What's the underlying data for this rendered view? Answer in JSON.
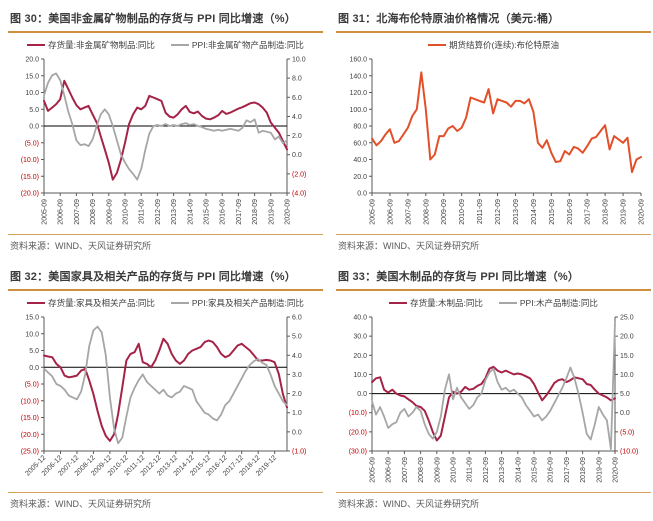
{
  "palette": {
    "crimson": "#A52347",
    "gray": "#A6A6A6",
    "orange": "#E2502A",
    "rule_orange": "#CE8F3F",
    "negative_tick": "#C00000",
    "axis": "#595959",
    "tick_text": "#404040",
    "zero_line": "#000000",
    "title_text": "#3B3B3B",
    "source_text": "#595959"
  },
  "chart_data": [
    {
      "type": "line",
      "title": "图 30：美国非金属矿物制品的存货与 PPI 同比增速（%）",
      "source": "资料来源：WIND、天风证券研究所",
      "legend_position": "top-center",
      "x_rotation": 90,
      "x_label_every": 4,
      "x_tick_labels": [
        "2005-09",
        "2006-09",
        "2007-09",
        "2008-09",
        "2009-09",
        "2010-09",
        "2011-09",
        "2012-09",
        "2013-09",
        "2014-09",
        "2015-09",
        "2016-09",
        "2017-09",
        "2018-09",
        "2019-09",
        "2020-09"
      ],
      "left_axis": {
        "min": -20,
        "max": 20,
        "tick_values": [
          20,
          15,
          10,
          5,
          0,
          -5,
          -10,
          -15,
          -20
        ],
        "tick_labels": [
          "20.0",
          "15.0",
          "10.0",
          "5.0",
          "0.0",
          "(5.0)",
          "(10.0)",
          "(15.0)",
          "(20.0)"
        ]
      },
      "right_axis": {
        "min": -4,
        "max": 10,
        "tick_values": [
          10,
          8,
          6,
          4,
          2,
          0,
          -2,
          -4
        ],
        "tick_labels": [
          "10.0",
          "8.0",
          "6.0",
          "4.0",
          "2.0",
          "0.0",
          "(2.0)",
          "(4.0)"
        ]
      },
      "series": [
        {
          "name": "存货量:非金属矿物制品:同比",
          "axis": "left",
          "color": "crimson",
          "width": 2,
          "values": [
            7.5,
            4.5,
            5.5,
            6.5,
            8.0,
            13.5,
            11.0,
            8.5,
            6.2,
            5.0,
            5.5,
            6.0,
            3.5,
            1.0,
            -3.0,
            -7.0,
            -11.0,
            -16.0,
            -14.0,
            -10.0,
            -5.0,
            0.5,
            3.5,
            5.5,
            5.0,
            6.0,
            9.0,
            8.5,
            8.0,
            7.5,
            4.0,
            2.8,
            2.5,
            3.5,
            5.0,
            6.0,
            4.2,
            3.8,
            4.3,
            3.0,
            2.2,
            2.0,
            2.5,
            3.2,
            4.5,
            3.6,
            4.0,
            4.6,
            5.2,
            5.6,
            6.2,
            6.8,
            7.0,
            6.5,
            5.5,
            4.0,
            1.0,
            -0.5,
            -2.0,
            -4.5,
            -7.0
          ]
        },
        {
          "name": "PPI:非金属矿物产品制造:同比",
          "axis": "right",
          "color": "gray",
          "width": 1.8,
          "values": [
            6.2,
            7.5,
            8.3,
            8.5,
            7.8,
            6.2,
            4.5,
            3.2,
            1.5,
            1.0,
            1.1,
            0.9,
            1.6,
            3.0,
            4.2,
            4.75,
            4.2,
            3.0,
            1.5,
            0.0,
            -0.8,
            -1.5,
            -2.0,
            -2.6,
            -1.5,
            0.5,
            2.2,
            3.0,
            3.1,
            3.0,
            3.2,
            3.0,
            3.1,
            3.0,
            3.2,
            3.3,
            3.1,
            3.2,
            3.0,
            2.9,
            2.7,
            2.6,
            2.5,
            2.6,
            2.5,
            2.6,
            2.7,
            2.6,
            2.5,
            2.8,
            3.6,
            3.4,
            3.7,
            2.3,
            2.5,
            2.4,
            2.3,
            1.6,
            1.9,
            1.2,
            1.5
          ]
        }
      ]
    },
    {
      "type": "line",
      "title": "图 31：北海布伦特原油价格情况（美元:桶）",
      "source": "资料来源：WIND、天风证券研究所",
      "legend_position": "top-center",
      "x_rotation": 90,
      "x_label_every": 4,
      "x_tick_labels": [
        "2005-09",
        "2006-09",
        "2007-09",
        "2008-09",
        "2009-09",
        "2010-09",
        "2011-09",
        "2012-09",
        "2013-09",
        "2014-09",
        "2015-09",
        "2016-09",
        "2017-09",
        "2018-09",
        "2019-09",
        "2020-09"
      ],
      "left_axis": {
        "min": 0,
        "max": 160,
        "tick_values": [
          160,
          140,
          120,
          100,
          80,
          60,
          40,
          20,
          0
        ],
        "tick_labels": [
          "160.0",
          "140.0",
          "120.0",
          "100.0",
          "80.0",
          "60.0",
          "40.0",
          "20.0",
          "0.0"
        ]
      },
      "right_axis": null,
      "series": [
        {
          "name": "期货结算价(连续):布伦特原油",
          "axis": "left",
          "color": "orange",
          "width": 2,
          "values": [
            65,
            57,
            62,
            70,
            76,
            60,
            62,
            70,
            78,
            92,
            100,
            144,
            100,
            40,
            46,
            68,
            68,
            77,
            80,
            74,
            78,
            90,
            114,
            112,
            110,
            108,
            124,
            95,
            112,
            110,
            108,
            103,
            110,
            110,
            107,
            112,
            97,
            60,
            54,
            63,
            48,
            37,
            38,
            50,
            46,
            55,
            53,
            48,
            56,
            65,
            67,
            74,
            81,
            52,
            68,
            64,
            60,
            66,
            25,
            40,
            43
          ]
        }
      ]
    },
    {
      "type": "line",
      "title": "图 32：美国家具及相关产品的存货与 PPI 同比增速（%）",
      "source": "资料来源：WIND、天风证券研究所",
      "legend_position": "top-center",
      "x_rotation": 45,
      "x_label_every": 4,
      "x_tick_labels": [
        "2005-12",
        "2006-12",
        "2007-12",
        "2008-12",
        "2009-12",
        "2010-12",
        "2011-12",
        "2012-12",
        "2013-12",
        "2014-12",
        "2015-12",
        "2016-12",
        "2017-12",
        "2018-12",
        "2019-12"
      ],
      "left_axis": {
        "min": -25,
        "max": 15,
        "tick_values": [
          15,
          10,
          5,
          0,
          -5,
          -10,
          -15,
          -20,
          -25
        ],
        "tick_labels": [
          "15.0",
          "10.0",
          "5.0",
          "0.0",
          "(5.0)",
          "(10.0)",
          "(15.0)",
          "(20.0)",
          "(25.0)"
        ]
      },
      "right_axis": {
        "min": -1,
        "max": 6,
        "tick_values": [
          6,
          5,
          4,
          3,
          2,
          1,
          0,
          -1
        ],
        "tick_labels": [
          "6.0",
          "5.0",
          "4.0",
          "3.0",
          "2.0",
          "1.0",
          "0.0",
          "(1.0)"
        ]
      },
      "series": [
        {
          "name": "存货量:家具及相关产品:同比",
          "axis": "left",
          "color": "crimson",
          "width": 2,
          "values": [
            3.5,
            3.2,
            3.0,
            1.0,
            0.0,
            -2.5,
            -3.0,
            -2.8,
            -2.5,
            -1.0,
            -0.5,
            -4.0,
            -8.0,
            -13.0,
            -17.5,
            -20.5,
            -22.0,
            -20.0,
            -14.0,
            -6.0,
            2.0,
            4.0,
            4.5,
            7.0,
            1.5,
            1.0,
            0.0,
            2.0,
            5.0,
            8.5,
            7.0,
            4.0,
            2.0,
            1.0,
            2.0,
            4.0,
            5.0,
            5.5,
            6.0,
            7.5,
            8.0,
            7.5,
            6.0,
            4.0,
            3.0,
            3.5,
            5.0,
            6.5,
            7.0,
            6.0,
            5.0,
            3.5,
            2.0,
            2.0,
            2.2,
            2.0,
            1.5,
            -2.0,
            -8.0,
            -12.0
          ]
        },
        {
          "name": "PPI:家具及相关产品制造:同比",
          "axis": "right",
          "color": "gray",
          "width": 1.8,
          "values": [
            3.3,
            3.1,
            2.9,
            2.5,
            2.4,
            2.2,
            1.9,
            1.8,
            1.7,
            2.1,
            3.0,
            4.5,
            5.3,
            5.5,
            5.2,
            4.0,
            1.8,
            0.2,
            -0.6,
            -0.3,
            0.8,
            1.8,
            2.3,
            2.7,
            3.0,
            2.6,
            2.4,
            2.2,
            2.0,
            2.2,
            1.9,
            1.8,
            2.0,
            2.1,
            2.4,
            2.3,
            2.2,
            1.6,
            1.3,
            1.0,
            0.9,
            0.7,
            0.6,
            0.9,
            1.4,
            1.6,
            2.0,
            2.4,
            2.8,
            3.2,
            3.5,
            3.7,
            3.8,
            3.6,
            3.5,
            3.0,
            2.4,
            2.0,
            1.6,
            1.4
          ]
        }
      ]
    },
    {
      "type": "line",
      "title": "图 33：美国木制品的存货与 PPI 同比增速（%）",
      "source": "资料来源：WIND、天风证券研究所",
      "legend_position": "top-center",
      "x_rotation": 90,
      "x_label_every": 4,
      "x_tick_labels": [
        "2005-09",
        "2006-09",
        "2007-09",
        "2008-09",
        "2009-09",
        "2010-09",
        "2011-09",
        "2012-09",
        "2013-09",
        "2014-09",
        "2015-09",
        "2016-09",
        "2017-09",
        "2018-09",
        "2019-09",
        "2020-09"
      ],
      "left_axis": {
        "min": -30,
        "max": 40,
        "tick_values": [
          40,
          30,
          20,
          10,
          0,
          -10,
          -20,
          -30
        ],
        "tick_labels": [
          "40.0",
          "30.0",
          "20.0",
          "10.0",
          "0.0",
          "(10.0)",
          "(20.0)",
          "(30.0)"
        ]
      },
      "right_axis": {
        "min": -10,
        "max": 25,
        "tick_values": [
          25,
          20,
          15,
          10,
          5,
          0,
          -5,
          -10
        ],
        "tick_labels": [
          "25.0",
          "20.0",
          "15.0",
          "10.0",
          "5.0",
          "0.0",
          "(5.0)",
          "(10.0)"
        ]
      },
      "series": [
        {
          "name": "存货量:木制品:同比",
          "axis": "left",
          "color": "crimson",
          "width": 2,
          "values": [
            6.0,
            8.0,
            8.5,
            2.0,
            0.5,
            2.0,
            0.0,
            -1.0,
            -1.5,
            -3.0,
            -4.5,
            -6.5,
            -7.0,
            -9.0,
            -14.0,
            -20.0,
            -24.5,
            -22.0,
            -12.0,
            -2.0,
            1.0,
            0.0,
            1.0,
            3.5,
            2.0,
            2.5,
            4.0,
            5.0,
            8.0,
            13.0,
            14.0,
            12.0,
            11.0,
            12.0,
            11.0,
            10.0,
            10.5,
            10.0,
            9.0,
            8.0,
            5.0,
            0.5,
            -3.5,
            -1.0,
            2.0,
            5.5,
            7.0,
            7.5,
            6.0,
            7.0,
            8.5,
            8.0,
            7.5,
            5.0,
            4.5,
            2.0,
            0.0,
            -1.0,
            -2.0,
            -3.5,
            -2.5
          ]
        },
        {
          "name": "PPI:木产品制造:同比",
          "axis": "right",
          "color": "gray",
          "width": 1.8,
          "values": [
            3.0,
            -0.5,
            1.5,
            -1.0,
            -4.0,
            -3.0,
            -2.5,
            0.0,
            1.0,
            -1.0,
            0.0,
            1.5,
            0.5,
            -3.0,
            -5.5,
            -6.8,
            -5.0,
            -1.0,
            6.0,
            10.0,
            3.5,
            6.5,
            4.0,
            2.5,
            1.0,
            2.0,
            4.0,
            5.0,
            8.5,
            10.5,
            11.5,
            8.0,
            6.0,
            6.5,
            5.5,
            6.0,
            5.0,
            4.0,
            2.0,
            0.5,
            -1.0,
            -0.5,
            -2.0,
            -1.0,
            0.5,
            2.5,
            4.5,
            6.5,
            9.0,
            11.8,
            9.0,
            5.0,
            0.0,
            -5.5,
            -7.0,
            -3.0,
            1.5,
            -0.5,
            -2.0,
            -9.5,
            23.5
          ]
        }
      ]
    }
  ]
}
